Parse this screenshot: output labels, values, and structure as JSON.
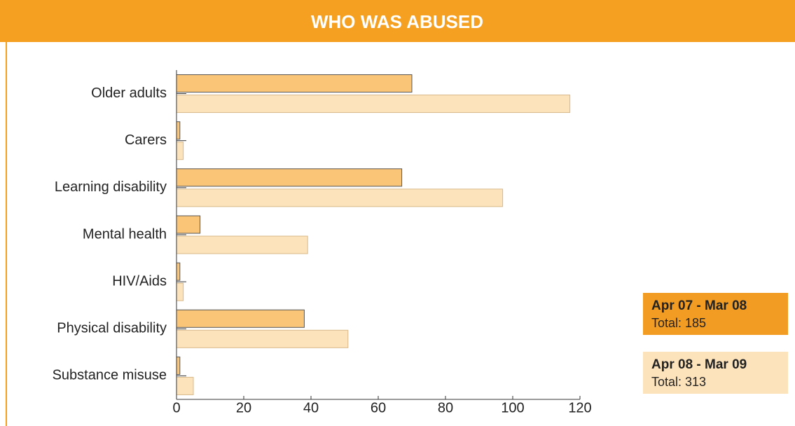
{
  "chart_data": {
    "type": "bar",
    "orientation": "horizontal",
    "title": "WHO WAS ABUSED",
    "categories": [
      "Older adults",
      "Carers",
      "Learning disability",
      "Mental health",
      "HIV/Aids",
      "Physical disability",
      "Substance misuse"
    ],
    "series": [
      {
        "name": "Apr 07 - Mar 08",
        "total_label": "Total: 185",
        "color": "#fbc577",
        "legend_color": "#f39c23",
        "values": [
          70,
          1,
          67,
          7,
          1,
          38,
          1
        ]
      },
      {
        "name": "Apr 08 - Mar 09",
        "total_label": "Total: 313",
        "color": "#fde3bc",
        "legend_color": "#fde3bc",
        "values": [
          117,
          2,
          97,
          39,
          2,
          51,
          5
        ]
      }
    ],
    "xlim": [
      0,
      120
    ],
    "xticks": [
      0,
      20,
      40,
      60,
      80,
      100,
      120
    ],
    "grid": false
  }
}
